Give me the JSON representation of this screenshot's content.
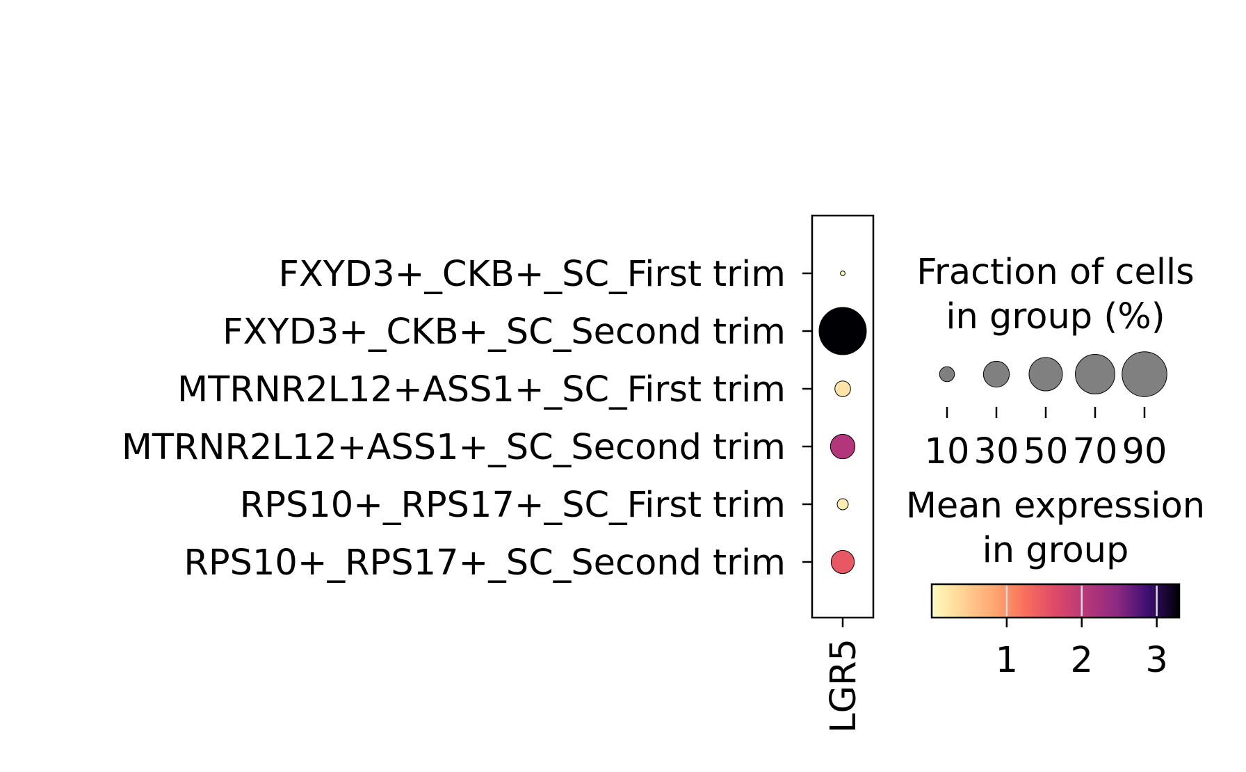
{
  "chart_data": {
    "type": "dotplot",
    "genes": [
      "LGR5"
    ],
    "groups": [
      "FXYD3+_CKB+_SC_First trim",
      "FXYD3+_CKB+_SC_Second trim",
      "MTRNR2L12+ASS1+_SC_First trim",
      "MTRNR2L12+ASS1+_SC_Second trim",
      "RPS10+_RPS17+_SC_First trim",
      "RPS10+_RPS17+_SC_Second trim"
    ],
    "fraction_pct": [
      1,
      100,
      11,
      27,
      5.5,
      24
    ],
    "mean_expression": [
      0.05,
      3.3,
      0.25,
      2.1,
      0.15,
      1.5
    ],
    "size_legend": {
      "title_line1": "Fraction of cells",
      "title_line2": "in group (%)",
      "values": [
        10,
        30,
        50,
        70,
        90
      ],
      "tick_labels": [
        "10",
        "30",
        "50",
        "70",
        "90"
      ],
      "dot_color": "#808080"
    },
    "color_legend": {
      "title_line1": "Mean expression",
      "title_line2": "in group",
      "range": [
        0,
        3.3
      ],
      "ticks": [
        1,
        2,
        3
      ],
      "tick_labels": [
        "1",
        "2",
        "3"
      ],
      "colormap": "magma_r"
    }
  }
}
